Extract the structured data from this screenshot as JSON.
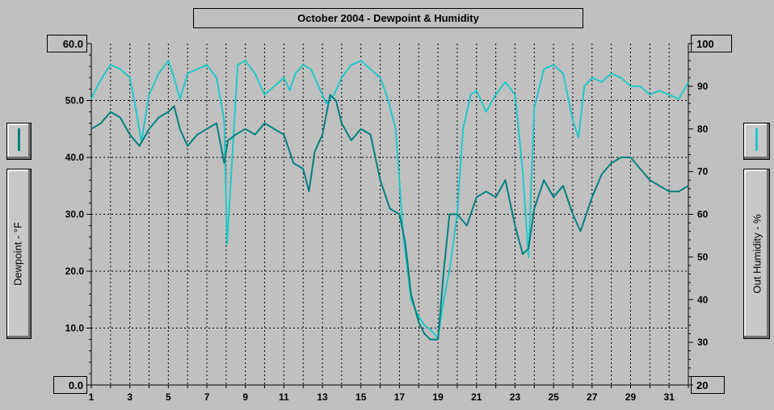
{
  "chart_data": {
    "type": "line",
    "title": "October 2004 - Dewpoint & Humidity",
    "x_ticks": [
      "1",
      "3",
      "5",
      "7",
      "9",
      "11",
      "13",
      "15",
      "17",
      "19",
      "21",
      "23",
      "25",
      "27",
      "29",
      "31"
    ],
    "xlim": [
      1,
      32
    ],
    "y_left": {
      "label": "Dewpoint - °F",
      "ticks": [
        "10.0",
        "20.0",
        "30.0",
        "40.0",
        "50.0"
      ],
      "range": [
        0,
        60
      ],
      "min_label": "0.0",
      "max_label": "60.0"
    },
    "y_right": {
      "label": "Out Humidity - %",
      "ticks": [
        "30",
        "40",
        "50",
        "60",
        "70",
        "80",
        "90"
      ],
      "range": [
        20,
        100
      ],
      "min_label": "20",
      "max_label": "100"
    },
    "grid": true,
    "series": [
      {
        "name": "Dewpoint",
        "axis": "left",
        "color": "#008080",
        "x": [
          1,
          1.5,
          2,
          2.5,
          3,
          3.5,
          4,
          4.5,
          5,
          5.3,
          5.6,
          6,
          6.5,
          7,
          7.5,
          7.9,
          8.1,
          8.5,
          9,
          9.5,
          10,
          10.5,
          11,
          11.5,
          12,
          12.3,
          12.6,
          13,
          13.4,
          13.7,
          14,
          14.5,
          15,
          15.5,
          16,
          16.5,
          17,
          17.3,
          17.6,
          18,
          18.3,
          18.6,
          19,
          19.3,
          19.6,
          20,
          20.5,
          21,
          21.5,
          22,
          22.5,
          23,
          23.4,
          23.7,
          24,
          24.5,
          25,
          25.5,
          26,
          26.4,
          27,
          27.5,
          28,
          28.5,
          29,
          29.5,
          30,
          30.5,
          31,
          31.5,
          32
        ],
        "y": [
          45,
          46,
          48,
          47,
          44,
          42,
          45,
          47,
          48,
          49,
          45,
          42,
          44,
          45,
          46,
          39,
          43,
          44,
          45,
          44,
          46,
          45,
          44,
          39,
          38,
          34,
          41,
          44,
          51,
          50,
          46,
          43,
          45,
          44,
          36,
          31,
          30,
          25,
          16,
          11,
          9,
          8,
          8,
          20,
          30,
          30,
          28,
          33,
          34,
          33,
          36,
          28,
          23,
          24,
          31,
          36,
          33,
          35,
          30,
          27,
          33,
          37,
          39,
          40,
          40,
          38,
          36,
          35,
          34,
          34,
          35
        ]
      },
      {
        "name": "Out Humidity",
        "axis": "right",
        "color": "#20c8c8",
        "x": [
          1,
          1.3,
          1.7,
          2,
          2.5,
          3,
          3.3,
          3.6,
          4,
          4.5,
          5,
          5.3,
          5.6,
          6,
          6.5,
          7,
          7.5,
          7.9,
          8.05,
          8.3,
          8.6,
          9,
          9.5,
          10,
          10.5,
          11,
          11.3,
          11.6,
          12,
          12.4,
          12.8,
          13.2,
          13.6,
          14,
          14.5,
          15,
          15.5,
          16,
          16.4,
          16.8,
          17.2,
          17.6,
          18,
          18.3,
          18.6,
          19,
          19.3,
          19.6,
          20,
          20.3,
          20.7,
          21,
          21.5,
          22,
          22.5,
          23,
          23.4,
          23.7,
          24,
          24.5,
          25,
          25.5,
          26,
          26.3,
          26.6,
          27,
          27.5,
          28,
          28.5,
          29,
          29.5,
          30,
          30.5,
          31,
          31.5,
          32
        ],
        "y": [
          87,
          90,
          93,
          95,
          94,
          92,
          85,
          77,
          88,
          93,
          96,
          92,
          87,
          93,
          94,
          95,
          92,
          82,
          53,
          72,
          95,
          96,
          93,
          88,
          90,
          92,
          89,
          93,
          95,
          94,
          90,
          86,
          88,
          92,
          95,
          96,
          94,
          92,
          87,
          80,
          55,
          40,
          36,
          34,
          33,
          31,
          40,
          47,
          60,
          80,
          88,
          89,
          84,
          88,
          91,
          88,
          70,
          50,
          85,
          94,
          95,
          93,
          82,
          78,
          90,
          92,
          91,
          93,
          92,
          90,
          90,
          88,
          89,
          88,
          87,
          91
        ]
      }
    ]
  }
}
